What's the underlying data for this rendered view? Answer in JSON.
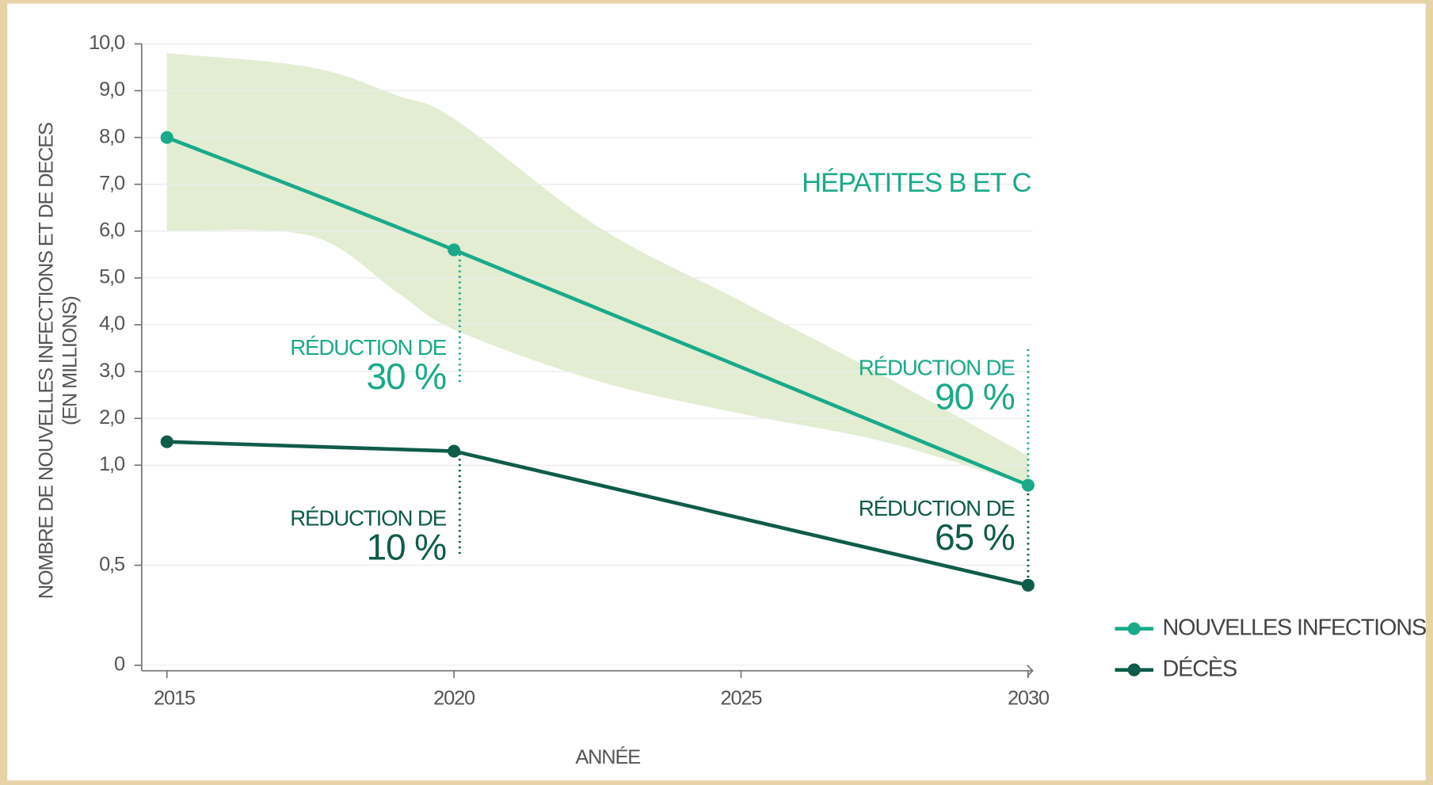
{
  "chart_data": {
    "type": "line",
    "title": "HÉPATITES B ET C",
    "x_label": "ANNÉE",
    "y_label": [
      "NOMBRE DE NOUVELLES INFECTIONS ET DE DECES",
      "(EN MILLIONS)"
    ],
    "x": [
      2015,
      2020,
      2030
    ],
    "series": [
      {
        "name": "NOUVELLES INFECTIONS",
        "color": "#1aaa8a",
        "smooth": true,
        "values": [
          8.0,
          5.6,
          0.9
        ]
      },
      {
        "name": "DÉCÈS",
        "color": "#0f5c4a",
        "smooth": false,
        "values": [
          1.5,
          1.3,
          0.4
        ]
      }
    ],
    "band": {
      "color": "#e2edd2",
      "x": [
        2015,
        2017.5,
        2019,
        2020,
        2022.5,
        2025,
        2027.5,
        2030
      ],
      "upper": [
        9.8,
        9.5,
        8.9,
        8.4,
        6.1,
        4.5,
        2.9,
        1.2
      ],
      "lower": [
        6.0,
        5.9,
        4.7,
        3.9,
        2.8,
        2.1,
        1.5,
        0.9
      ]
    },
    "annotations": [
      {
        "label": "RÉDUCTION DE",
        "value": "30 %"
      },
      {
        "label": "RÉDUCTION DE",
        "value": "10 %"
      },
      {
        "label": "RÉDUCTION DE",
        "value": "90 %"
      },
      {
        "label": "RÉDUCTION DE",
        "value": "65 %"
      }
    ],
    "xlim": [
      2014.56,
      2030.08
    ],
    "xticks": [
      2015,
      2020,
      2025,
      2030
    ],
    "ylim": [
      0,
      10
    ],
    "y_break": 1,
    "yticks": [
      0,
      {
        "value": 0.5,
        "label": "0,5"
      },
      {
        "value": 1,
        "label": "1,0"
      },
      {
        "value": 2,
        "label": "2,0"
      },
      {
        "value": 3,
        "label": "3,0"
      },
      {
        "value": 4,
        "label": "4,0"
      },
      {
        "value": 5,
        "label": "5,0"
      },
      {
        "value": 6,
        "label": "6,0"
      },
      {
        "value": 7,
        "label": "7,0"
      },
      {
        "value": 8,
        "label": "8,0"
      },
      {
        "value": 9,
        "label": "9,0"
      },
      {
        "value": 10,
        "label": "10,0"
      }
    ],
    "grid": true,
    "legend": "bottom-right"
  }
}
